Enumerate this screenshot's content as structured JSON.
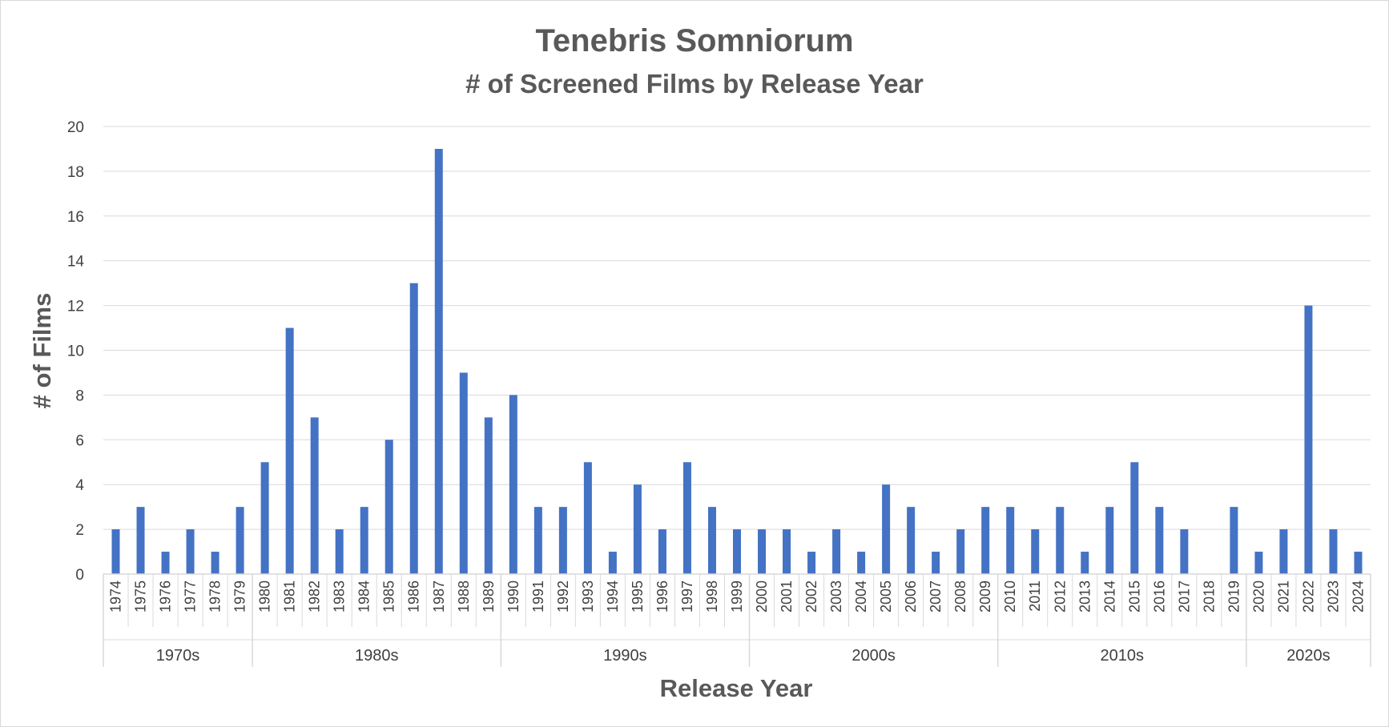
{
  "chart_data": {
    "type": "bar",
    "title": "Tenebris Somniorum",
    "subtitle": "# of Screened Films by Release Year",
    "xlabel": "Release Year",
    "ylabel": "# of Films",
    "ylim": [
      0,
      20
    ],
    "ytick_step": 2,
    "grid": true,
    "legend": "none",
    "bar_color": "#4472c4",
    "categories": [
      "1974",
      "1975",
      "1976",
      "1977",
      "1978",
      "1979",
      "1980",
      "1981",
      "1982",
      "1983",
      "1984",
      "1985",
      "1986",
      "1987",
      "1988",
      "1989",
      "1990",
      "1991",
      "1992",
      "1993",
      "1994",
      "1995",
      "1996",
      "1997",
      "1998",
      "1999",
      "2000",
      "2001",
      "2002",
      "2003",
      "2004",
      "2005",
      "2006",
      "2007",
      "2008",
      "2009",
      "2010",
      "2011",
      "2012",
      "2013",
      "2014",
      "2015",
      "2016",
      "2017",
      "2018",
      "2019",
      "2020",
      "2021",
      "2022",
      "2023",
      "2024"
    ],
    "values": [
      2,
      3,
      1,
      2,
      1,
      3,
      5,
      11,
      7,
      2,
      3,
      6,
      13,
      19,
      9,
      7,
      8,
      3,
      3,
      5,
      1,
      4,
      2,
      5,
      3,
      2,
      2,
      2,
      1,
      2,
      1,
      4,
      3,
      1,
      2,
      3,
      3,
      2,
      3,
      1,
      3,
      5,
      3,
      2,
      0,
      3,
      1,
      2,
      12,
      2,
      1
    ],
    "groups": [
      {
        "label": "1970s",
        "start": 0,
        "end": 5
      },
      {
        "label": "1980s",
        "start": 6,
        "end": 15
      },
      {
        "label": "1990s",
        "start": 16,
        "end": 25
      },
      {
        "label": "2000s",
        "start": 26,
        "end": 35
      },
      {
        "label": "2010s",
        "start": 36,
        "end": 45
      },
      {
        "label": "2020s",
        "start": 46,
        "end": 50
      }
    ]
  }
}
